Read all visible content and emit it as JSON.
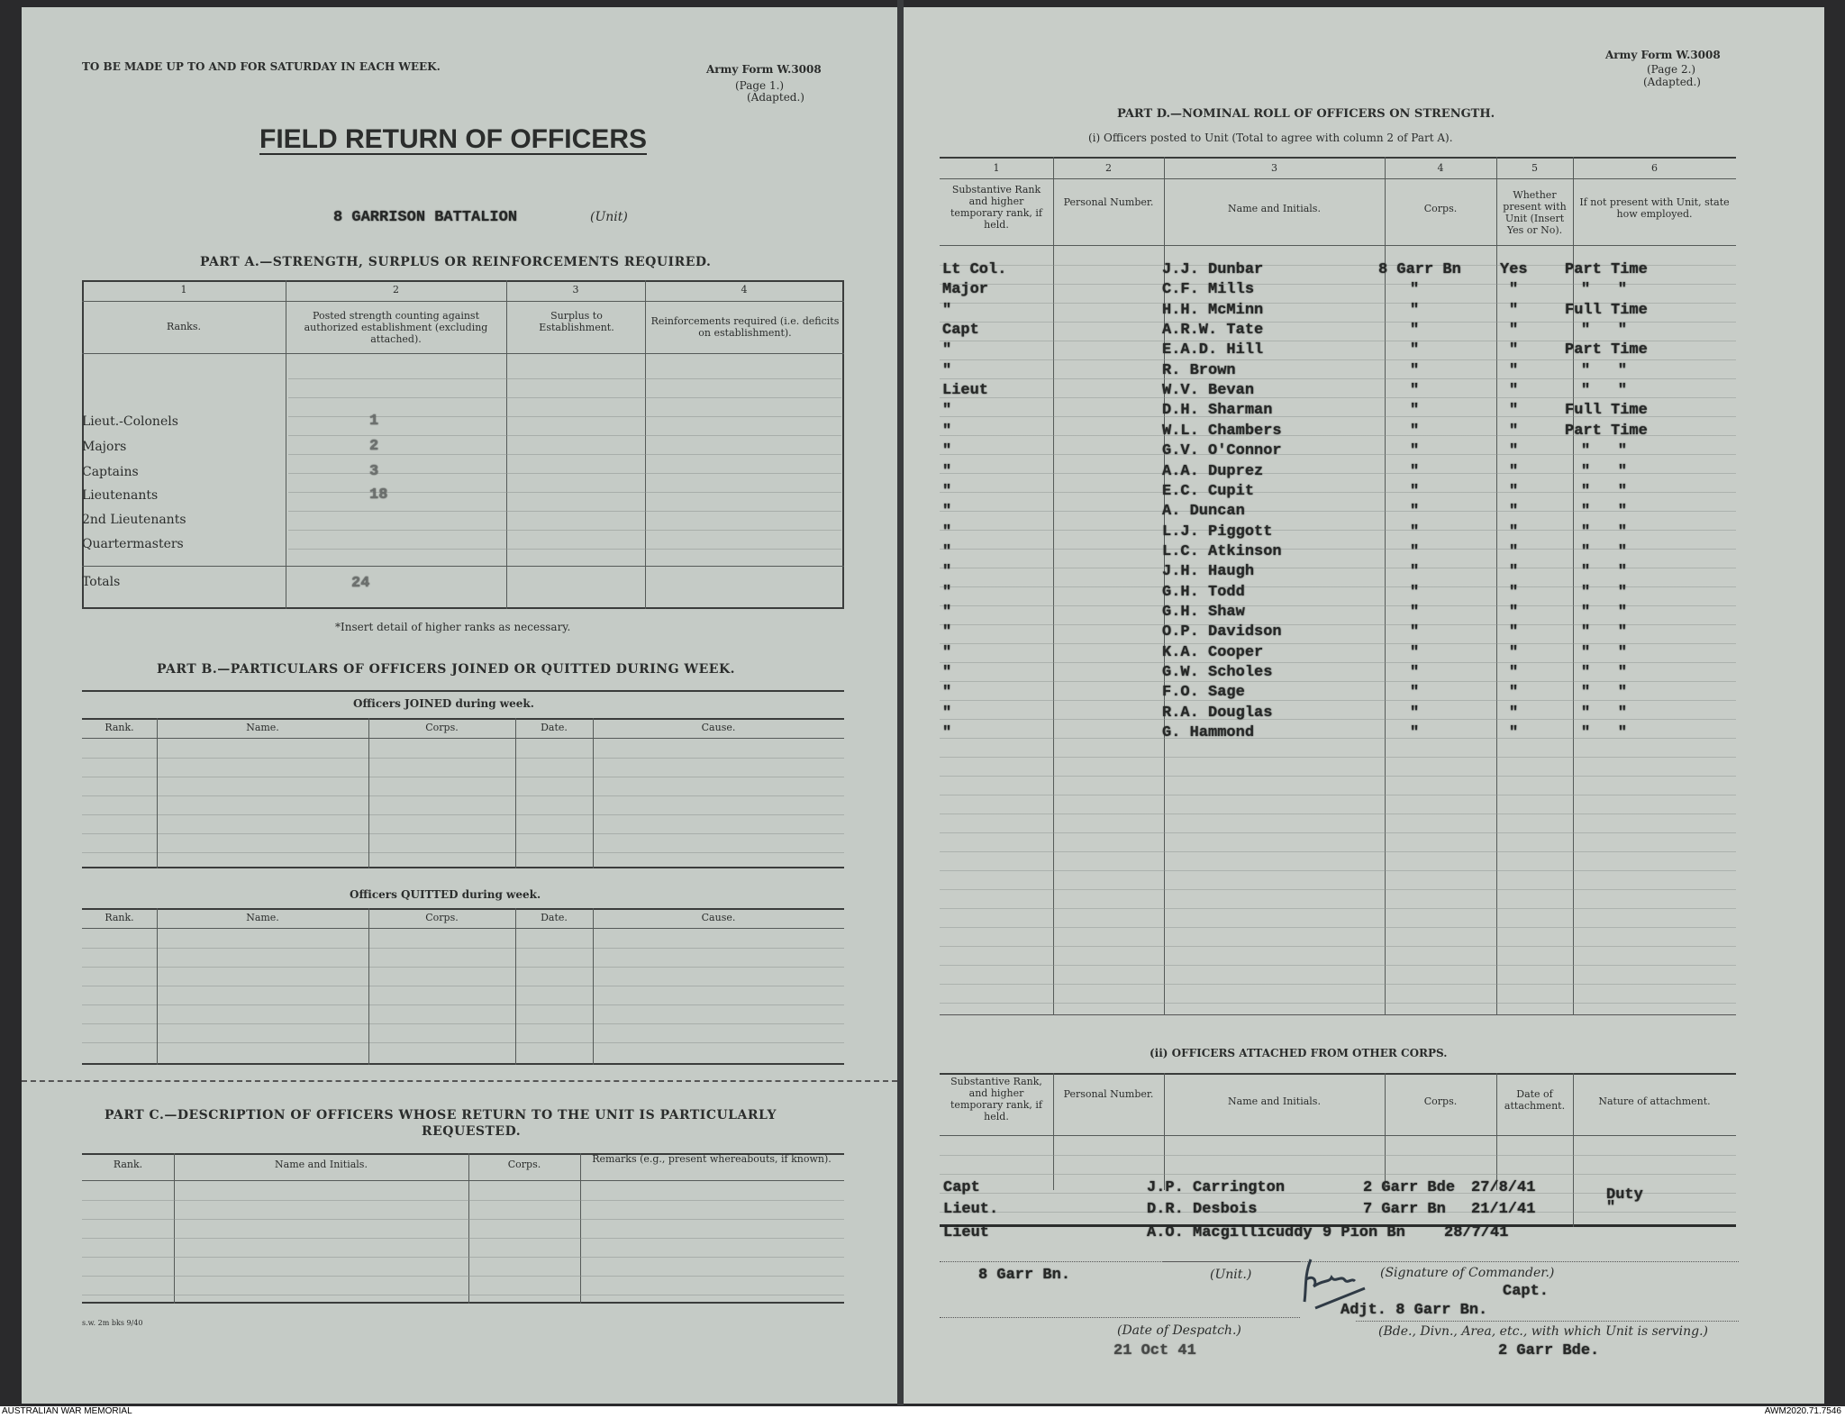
{
  "page1": {
    "top_note": "TO BE MADE UP TO AND FOR SATURDAY IN EACH WEEK.",
    "form_no": "Army Form W.3008",
    "form_page": "(Page 1.)",
    "form_adapted": "(Adapted.)",
    "title": "FIELD RETURN OF OFFICERS",
    "unit_value": "8 GARRISON BATTALION",
    "unit_label": "(Unit)",
    "part_a": {
      "heading": "PART A.—STRENGTH, SURPLUS OR REINFORCEMENTS REQUIRED.",
      "col_numbers": [
        "1",
        "2",
        "3",
        "4"
      ],
      "col_headers": [
        "Ranks.",
        "Posted strength counting against authorized establishment (excluding attached).",
        "Surplus to Establishment.",
        "Reinforcements required (i.e. deficits on establishment)."
      ],
      "rows": [
        {
          "rank": "Lieut.-Colonels",
          "posted": "1"
        },
        {
          "rank": "Majors",
          "posted": "2"
        },
        {
          "rank": "Captains",
          "posted": "3"
        },
        {
          "rank": "Lieutenants",
          "posted": "18"
        },
        {
          "rank": "2nd Lieutenants",
          "posted": ""
        },
        {
          "rank": "Quartermasters",
          "posted": ""
        }
      ],
      "totals_label": "Totals",
      "totals_value": "24",
      "footnote": "*Insert detail of higher ranks as necessary."
    },
    "part_b": {
      "heading": "PART B.—PARTICULARS OF OFFICERS JOINED OR QUITTED DURING WEEK.",
      "joined_title": "Officers JOINED during week.",
      "quitted_title": "Officers QUITTED during week.",
      "cols": [
        "Rank.",
        "Name.",
        "Corps.",
        "Date.",
        "Cause."
      ]
    },
    "part_c": {
      "heading_1": "PART C.—DESCRIPTION OF OFFICERS WHOSE RETURN TO THE UNIT IS PARTICULARLY",
      "heading_2": "REQUESTED.",
      "cols": [
        "Rank.",
        "Name and Initials.",
        "Corps.",
        "Remarks (e.g., present whereabouts, if known)."
      ]
    },
    "printer_note": "s.w. 2m bks 9/40"
  },
  "page2": {
    "form_no": "Army Form W.3008",
    "form_page": "(Page 2.)",
    "form_adapted": "(Adapted.)",
    "part_d_heading": "PART D.—NOMINAL ROLL OF OFFICERS ON STRENGTH.",
    "sub_i": "(i) Officers posted to Unit (Total to agree with column 2 of Part A).",
    "col_numbers": [
      "1",
      "2",
      "3",
      "4",
      "5",
      "6"
    ],
    "col_headers": [
      "Substantive Rank and higher temporary rank, if held.",
      "Personal Number.",
      "Name and Initials.",
      "Corps.",
      "Whether present with Unit (Insert Yes or No).",
      "If not present with Unit, state how employed."
    ],
    "officers": [
      [
        "Lt Col.",
        "J.J. Dunbar",
        "8 Garr Bn",
        "Yes",
        "Part Time"
      ],
      [
        "Major",
        "C.F. Mills",
        "\"",
        "\"",
        "\"   \""
      ],
      [
        "\"",
        "H.H. McMinn",
        "\"",
        "\"",
        "Full Time"
      ],
      [
        "Capt",
        "A.R.W. Tate",
        "\"",
        "\"",
        "\"   \""
      ],
      [
        "\"",
        "E.A.D. Hill",
        "\"",
        "\"",
        "Part Time"
      ],
      [
        "\"",
        "R. Brown",
        "\"",
        "\"",
        "\"   \""
      ],
      [
        "Lieut",
        "W.V. Bevan",
        "\"",
        "\"",
        "\"   \""
      ],
      [
        "\"",
        "D.H. Sharman",
        "\"",
        "\"",
        "Full Time"
      ],
      [
        "\"",
        "W.L. Chambers",
        "\"",
        "\"",
        "Part Time"
      ],
      [
        "\"",
        "G.V. O'Connor",
        "\"",
        "\"",
        "\"   \""
      ],
      [
        "\"",
        "A.A. Duprez",
        "\"",
        "\"",
        "\"   \""
      ],
      [
        "\"",
        "E.C. Cupit",
        "\"",
        "\"",
        "\"   \""
      ],
      [
        "\"",
        "A. Duncan",
        "\"",
        "\"",
        "\"   \""
      ],
      [
        "\"",
        "L.J. Piggott",
        "\"",
        "\"",
        "\"   \""
      ],
      [
        "\"",
        "L.C. Atkinson",
        "\"",
        "\"",
        "\"   \""
      ],
      [
        "\"",
        "J.H. Haugh",
        "\"",
        "\"",
        "\"   \""
      ],
      [
        "\"",
        "G.H. Todd",
        "\"",
        "\"",
        "\"   \""
      ],
      [
        "\"",
        "G.H. Shaw",
        "\"",
        "\"",
        "\"   \""
      ],
      [
        "\"",
        "O.P. Davidson",
        "\"",
        "\"",
        "\"   \""
      ],
      [
        "\"",
        "K.A. Cooper",
        "\"",
        "\"",
        "\"   \""
      ],
      [
        "\"",
        "G.W. Scholes",
        "\"",
        "\"",
        "\"   \""
      ],
      [
        "\"",
        "F.O. Sage",
        "\"",
        "\"",
        "\"   \""
      ],
      [
        "\"",
        "R.A. Douglas",
        "\"",
        "\"",
        "\"   \""
      ],
      [
        "\"",
        "G. Hammond",
        "\"",
        "\"",
        "\"   \""
      ]
    ],
    "sub_ii": "(ii) OFFICERS ATTACHED FROM OTHER CORPS.",
    "attached_headers": [
      "Substantive Rank, and higher temporary rank, if held.",
      "Personal Number.",
      "Name and Initials.",
      "Corps.",
      "Date of attachment.",
      "Nature of attachment."
    ],
    "attached": [
      [
        "Capt",
        "J.P. Carrington",
        "2 Garr Bde",
        "27/8/41",
        "Duty"
      ],
      [
        "Lieut.",
        "D.R. Desbois",
        "7 Garr Bn",
        "21/1/41",
        "\""
      ],
      [
        "Lieut",
        "A.O. Macgillicuddy",
        "9 Pion Bn",
        "28/7/41",
        ""
      ]
    ],
    "unit_value": "8 Garr Bn.",
    "unit_label": "(Unit.)",
    "signature_label": "(Signature of Commander.)",
    "signer_rank": "Capt.",
    "signer_post": "Adjt. 8 Garr Bn.",
    "date_label": "(Date of Despatch.)",
    "date_value": "21 Oct 41",
    "formation_label": "(Bde., Divn., Area, etc., with which Unit is serving.)",
    "formation_value": "2 Garr Bde."
  },
  "footer": {
    "left": "AUSTRALIAN WAR MEMORIAL",
    "right": "AWM2020.71.7546"
  }
}
